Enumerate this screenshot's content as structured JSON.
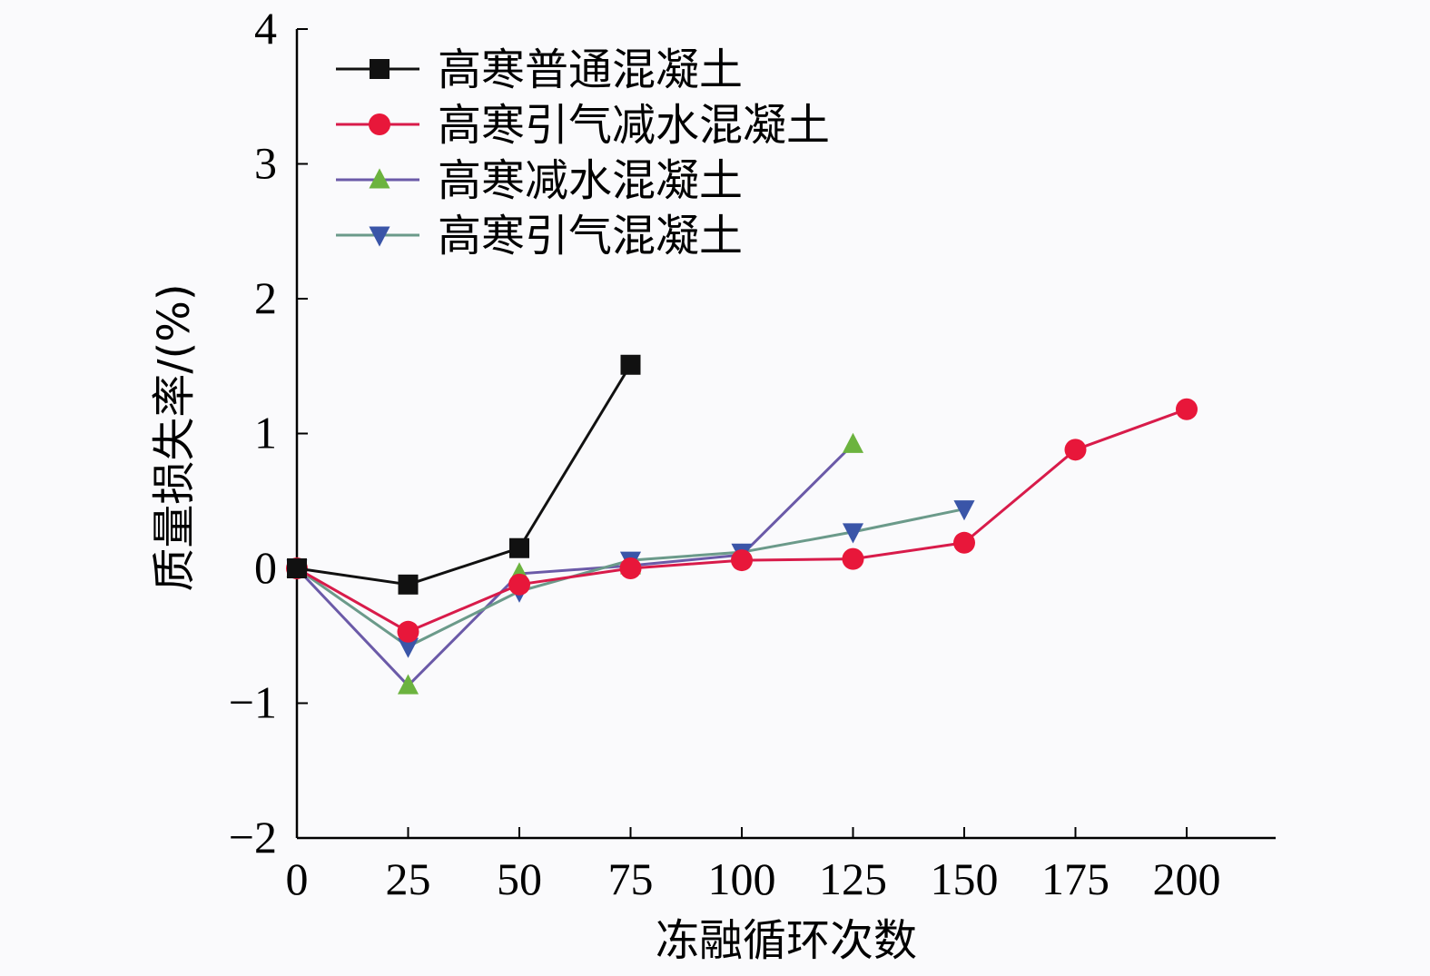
{
  "chart_data": {
    "type": "line",
    "xlabel": "冻融循环次数",
    "ylabel": "质量损失率/(%)",
    "xlim": [
      0,
      220
    ],
    "ylim": [
      -2,
      4
    ],
    "x_ticks": [
      0,
      25,
      50,
      75,
      100,
      125,
      150,
      175,
      200
    ],
    "y_ticks": [
      -2,
      -1,
      0,
      1,
      2,
      3,
      4
    ],
    "y_tick_labels": [
      "−2",
      "−1",
      "0",
      "1",
      "2",
      "3",
      "4"
    ],
    "legend_position": "top-left",
    "series": [
      {
        "name": "高寒普通混凝土",
        "line_color": "#111111",
        "marker_color": "#111111",
        "marker": "square",
        "x": [
          0,
          25,
          50,
          75
        ],
        "y": [
          0.0,
          -0.12,
          0.15,
          1.51
        ]
      },
      {
        "name": "高寒引气减水混凝土",
        "line_color": "#d81b4a",
        "marker_color": "#e8173a",
        "marker": "circle",
        "x": [
          0,
          25,
          50,
          75,
          100,
          125,
          150,
          175,
          200
        ],
        "y": [
          0.0,
          -0.47,
          -0.12,
          0.0,
          0.06,
          0.07,
          0.19,
          0.88,
          1.18
        ]
      },
      {
        "name": "高寒减水混凝土",
        "line_color": "#6b5aa8",
        "marker_color": "#6cb33f",
        "marker": "triangle-up",
        "x": [
          0,
          25,
          50,
          75,
          100,
          125
        ],
        "y": [
          0.0,
          -0.87,
          -0.04,
          0.02,
          0.1,
          0.92
        ]
      },
      {
        "name": "高寒引气混凝土",
        "line_color": "#6b9a8a",
        "marker_color": "#3a55a8",
        "marker": "triangle-down",
        "x": [
          0,
          25,
          50,
          75,
          100,
          125,
          150
        ],
        "y": [
          0.0,
          -0.58,
          -0.17,
          0.06,
          0.12,
          0.27,
          0.44
        ]
      }
    ]
  }
}
